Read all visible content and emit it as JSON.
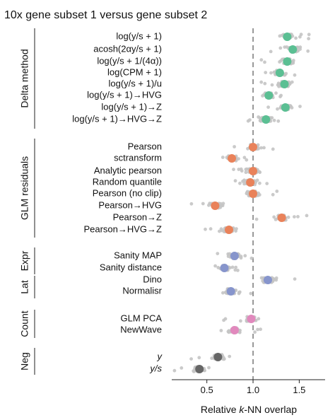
{
  "chart_data": {
    "type": "scatter",
    "title": "10x gene subset 1 versus gene subset 2",
    "xlabel": "Relative k-NN overlap",
    "xlim": [
      0.12,
      1.78
    ],
    "xticks": [
      "0.5",
      "1.0",
      "1.5"
    ],
    "xtick_values": [
      0.5,
      1.0,
      1.5
    ],
    "reference_line": 1.0,
    "background_points_color": "#c4c4c4",
    "groups": [
      {
        "label": "Delta method",
        "color": "#5bbf93",
        "rows": [
          {
            "label": "log(y/s + 1)",
            "median": 1.37
          },
          {
            "label": "acosh(2αy/s + 1)",
            "median": 1.43
          },
          {
            "label": "log(y/s + 1/(4α))",
            "median": 1.37
          },
          {
            "label": "log(CPM + 1)",
            "median": 1.29
          },
          {
            "label": "log(y/s + 1)/u",
            "median": 1.34
          },
          {
            "label": "log(y/s + 1)→HVG",
            "median": 1.17
          },
          {
            "label": "log(y/s + 1)→Z",
            "median": 1.35
          },
          {
            "label": "log(y/s + 1)→HVG→Z",
            "median": 1.14
          }
        ]
      },
      {
        "label": "GLM residuals",
        "color": "#e9825a",
        "rows": [
          {
            "label": "Pearson",
            "median": 1.0
          },
          {
            "label": "sctransform",
            "median": 0.77
          },
          {
            "label": "Analytic pearson",
            "median": 1.0
          },
          {
            "label": "Random quantile",
            "median": 0.97
          },
          {
            "label": "Pearson (no clip)",
            "median": 1.0
          },
          {
            "label": "Pearson→HVG",
            "median": 0.59
          },
          {
            "label": "Pearson→Z",
            "median": 1.31
          },
          {
            "label": "Pearson→HVG→Z",
            "median": 0.74
          }
        ]
      },
      {
        "label": "Expr",
        "color": "#8795cc",
        "rows": [
          {
            "label": "Sanity MAP",
            "median": 0.8
          },
          {
            "label": "Sanity distance",
            "median": 0.69
          }
        ]
      },
      {
        "label": "Lat",
        "color": "#8795cc",
        "rows": [
          {
            "label": "Dino",
            "median": 1.16
          },
          {
            "label": "Normalisr",
            "median": 0.76
          }
        ]
      },
      {
        "label": "Count",
        "color": "#e189bd",
        "rows": [
          {
            "label": "GLM PCA",
            "median": 0.98
          },
          {
            "label": "NewWave",
            "median": 0.8
          }
        ]
      },
      {
        "label": "Neg",
        "color": "#666666",
        "rows": [
          {
            "label": "y",
            "median": 0.62
          },
          {
            "label": "y/s",
            "median": 0.42
          }
        ]
      }
    ]
  }
}
